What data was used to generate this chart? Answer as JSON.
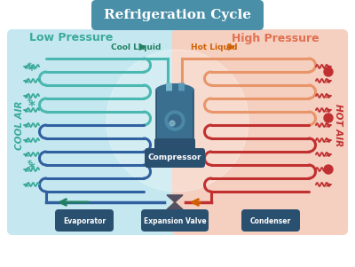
{
  "title": "Refrigeration Cycle",
  "title_bg": "#4a8fa8",
  "title_color": "#ffffff",
  "low_pressure_label": "Low Pressure",
  "high_pressure_label": "High Pressure",
  "cool_liquid_label": "Cool Liquid",
  "hot_liquid_label": "Hot Liquid",
  "cool_air_label": "COOL AIR",
  "hot_air_label": "HOT AIR",
  "compressor_label": "Compressor",
  "evaporator_label": "Evaporator",
  "expansion_valve_label": "Expansion Valve",
  "condenser_label": "Condenser",
  "bg_left_color": "#c5e8f0",
  "bg_right_color": "#f5cfc0",
  "coil_left_top_color": "#4ab8b0",
  "coil_left_bot_color": "#3060a0",
  "coil_right_top_color": "#e8956a",
  "coil_right_bot_color": "#c03030",
  "arrow_cool_color": "#208060",
  "arrow_hot_color": "#d06000",
  "compressor_body_color": "#3a6f8f",
  "compressor_dark_color": "#2a4f6f",
  "label_bg_color": "#2a5070",
  "lp_label_color": "#3aaa9a",
  "hp_label_color": "#e07050",
  "cool_air_color": "#3aaa9a",
  "hot_air_color": "#c03030",
  "wave_left_color": "#3aaa9a",
  "wave_right_color": "#c03030",
  "snowflake_color": "#3aaa9a",
  "hot_dot_color": "#c03030",
  "expansion_valve_color": "#555060"
}
